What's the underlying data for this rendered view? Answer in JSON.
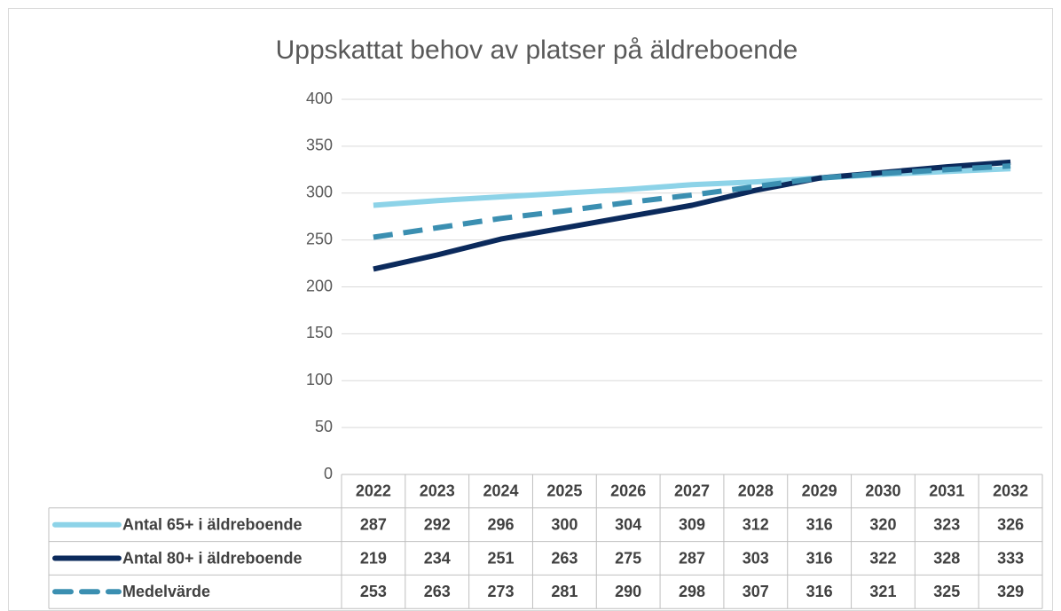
{
  "chart_data": {
    "type": "line",
    "title": "Uppskattat behov av platser på äldreboende",
    "categories": [
      "2022",
      "2023",
      "2024",
      "2025",
      "2026",
      "2027",
      "2028",
      "2029",
      "2030",
      "2031",
      "2032"
    ],
    "series": [
      {
        "name": "Antal 65+ i äldreboende",
        "color": "#8dd3e8",
        "line_style": "solid",
        "values": [
          287,
          292,
          296,
          300,
          304,
          309,
          312,
          316,
          320,
          323,
          326
        ]
      },
      {
        "name": "Antal 80+ i äldreboende",
        "color": "#0b2a5c",
        "line_style": "solid",
        "values": [
          219,
          234,
          251,
          263,
          275,
          287,
          303,
          316,
          322,
          328,
          333
        ]
      },
      {
        "name": "Medelvärde",
        "color": "#3b8fb1",
        "line_style": "dashed",
        "values": [
          253,
          263,
          273,
          281,
          290,
          298,
          307,
          316,
          321,
          325,
          329
        ]
      }
    ],
    "ylim": [
      0,
      400
    ],
    "yticks": [
      0,
      50,
      100,
      150,
      200,
      250,
      300,
      350,
      400
    ],
    "grid": true
  }
}
